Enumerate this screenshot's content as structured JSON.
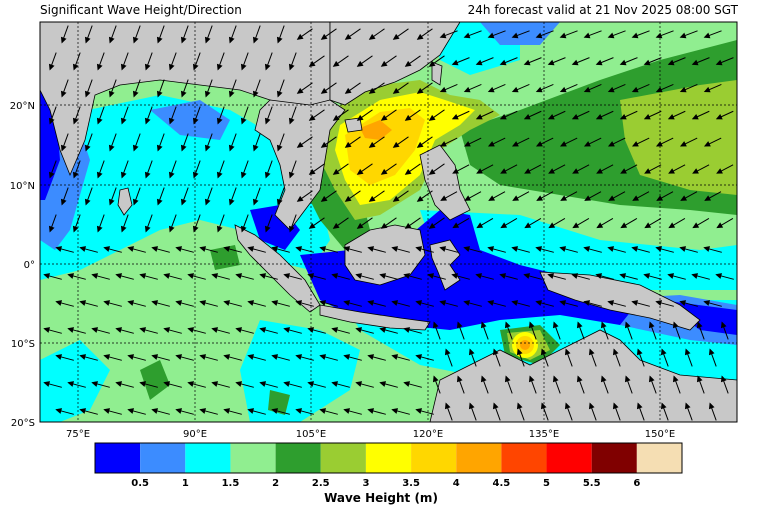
{
  "header": {
    "title_left": "Significant Wave Height/Direction",
    "title_right": "24h forecast valid at 21 Nov 2025 08:00 SGT"
  },
  "axes": {
    "x_ticks": [
      "75°E",
      "90°E",
      "105°E",
      "120°E",
      "135°E",
      "150°E"
    ],
    "y_ticks": [
      "20°N",
      "10°N",
      "0°",
      "10°S",
      "20°S"
    ]
  },
  "legend": {
    "title": "Wave Height (m)",
    "levels": [
      "0.5",
      "1",
      "1.5",
      "2",
      "2.5",
      "3",
      "3.5",
      "4",
      "4.5",
      "5",
      "5.5",
      "6"
    ],
    "colors": [
      "#0000ff",
      "#3c8cff",
      "#00ffff",
      "#90ee90",
      "#2e9e2e",
      "#9acd32",
      "#ffff00",
      "#ffd700",
      "#ffa500",
      "#ff4500",
      "#ff0000",
      "#800000",
      "#f5deb3"
    ]
  },
  "map": {
    "land_color": "#c8c8c8",
    "sea_default_color": "#90ee90",
    "arrow_color": "#000000"
  }
}
